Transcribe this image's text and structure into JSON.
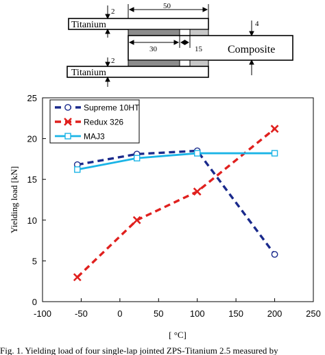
{
  "schematic": {
    "upper_adherend_label": "Titanium",
    "lower_adherend_label": "Titanium",
    "core_label": "Composite",
    "dim_top_length": "50",
    "dim_overlap": "30",
    "dim_gap": "15",
    "dim_thickness_top": "2",
    "dim_thickness_bottom": "2",
    "dim_core_thickness": "4"
  },
  "caption_fragment": "Fig. 1. Yielding load of four single-lap jointed ZPS-Titanium 2.5 measured by",
  "chart_data": {
    "type": "line",
    "title": "",
    "xlabel": "[ °C]",
    "ylabel": "Yielding load  [kN]",
    "xlim": [
      -100,
      250
    ],
    "ylim": [
      0,
      25
    ],
    "xticks": [
      "-100",
      "-50",
      "0",
      "50",
      "100",
      "150",
      "200",
      "250"
    ],
    "yticks": [
      "0",
      "5",
      "10",
      "15",
      "20",
      "25"
    ],
    "grid": false,
    "legend_position": "top-left",
    "series": [
      {
        "name": "Supreme 10HT",
        "color": "#1a2a8c",
        "line_style": "dashed",
        "marker": "circle",
        "x": [
          -55,
          22,
          100,
          200
        ],
        "y": [
          16.8,
          18.1,
          18.5,
          5.8
        ]
      },
      {
        "name": "Redux 326",
        "color": "#e0201e",
        "line_style": "dashed",
        "marker": "x",
        "x": [
          -55,
          22,
          100,
          200
        ],
        "y": [
          3.0,
          10.0,
          13.5,
          21.2
        ]
      },
      {
        "name": "MAJ3",
        "color": "#1ab4e6",
        "line_style": "solid",
        "marker": "square",
        "x": [
          -55,
          22,
          100,
          200
        ],
        "y": [
          16.2,
          17.6,
          18.2,
          18.2
        ]
      }
    ]
  }
}
